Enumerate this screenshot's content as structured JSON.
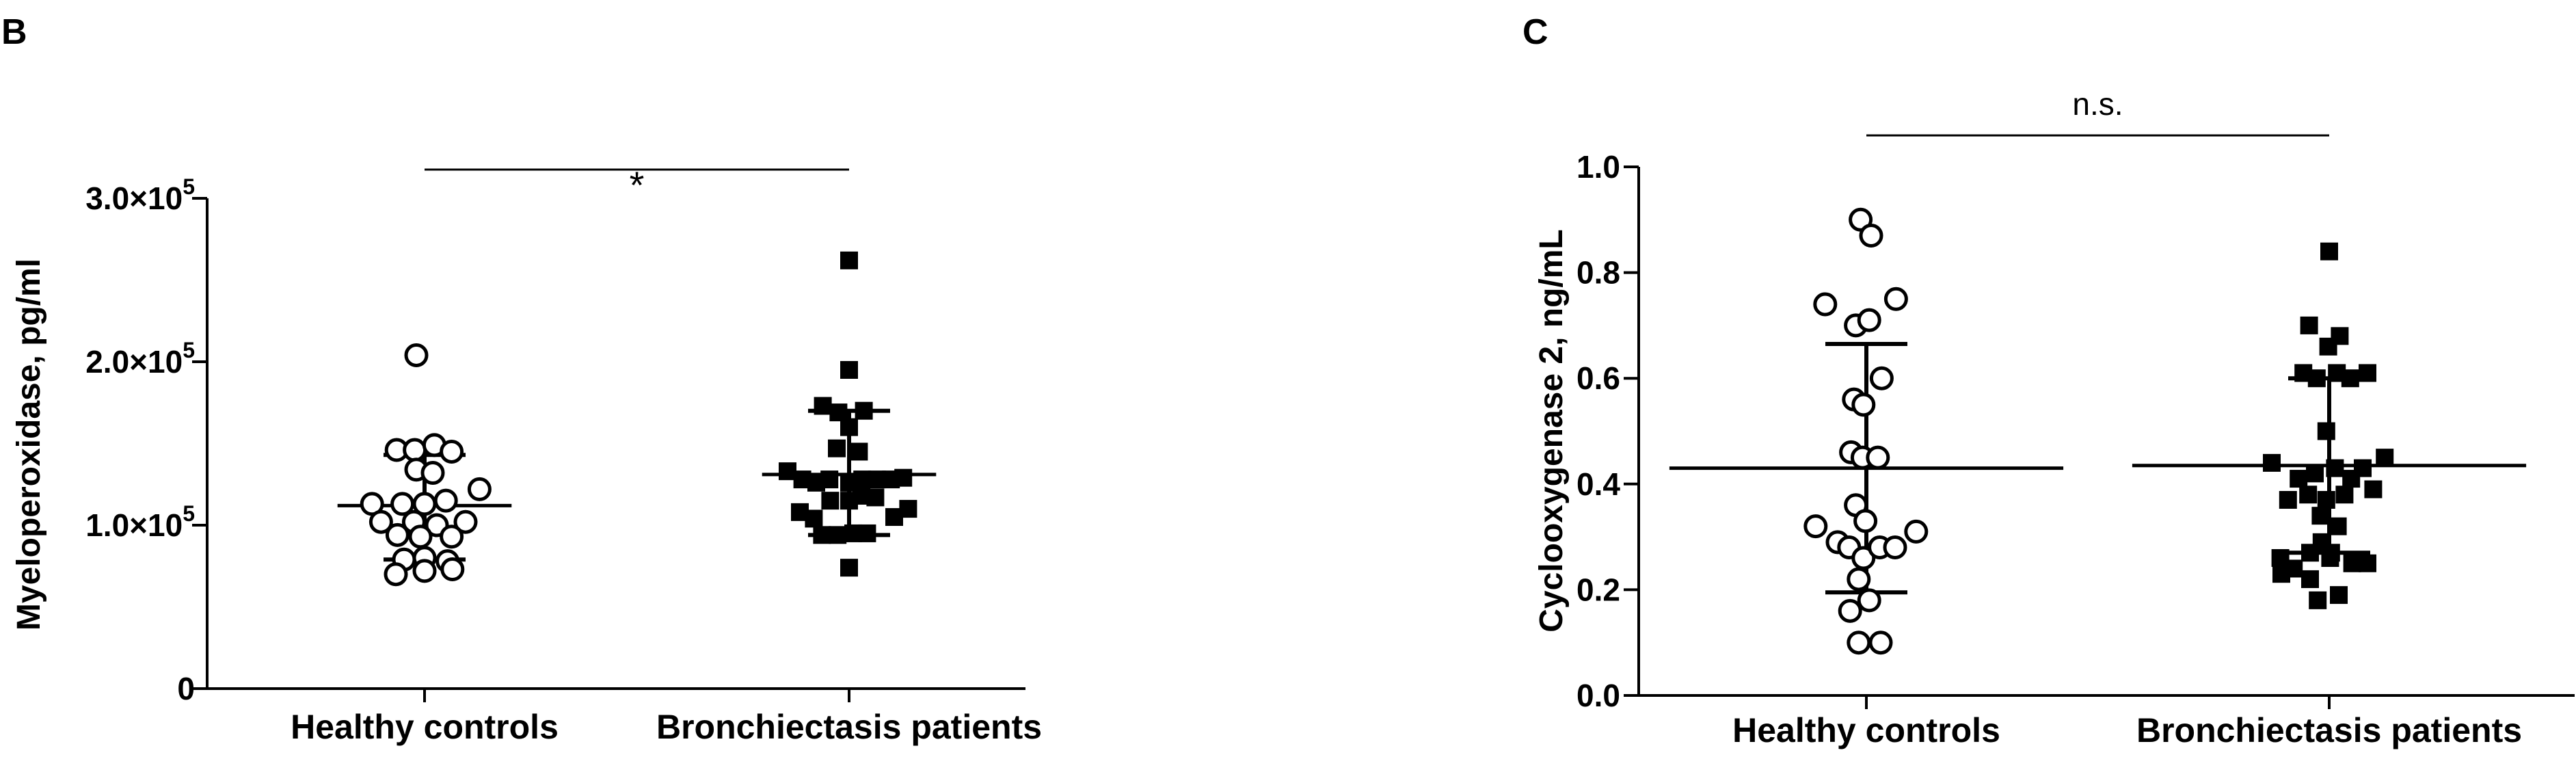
{
  "panels": {
    "b": {
      "letter": "B"
    },
    "c": {
      "letter": "C"
    }
  },
  "colors": {
    "ink": "#000000",
    "background": "#ffffff"
  },
  "chart_data": [
    {
      "id": "b",
      "type": "scatter",
      "ylabel": "Myeloperoxidase, pg/ml",
      "ylim": [
        0,
        300000
      ],
      "yticks": [
        {
          "value": 0,
          "mant": "0",
          "exp": ""
        },
        {
          "value": 100000,
          "mant": "1.0×10",
          "exp": "5"
        },
        {
          "value": 200000,
          "mant": "2.0×10",
          "exp": "5"
        },
        {
          "value": 300000,
          "mant": "3.0×10",
          "exp": "5"
        }
      ],
      "categories": [
        "Healthy controls",
        "Bronchiectasis patients"
      ],
      "significance": "*",
      "series": [
        {
          "name": "Healthy controls",
          "marker": "open-circle",
          "center": 112000,
          "lower": 79000,
          "upper": 143000,
          "points": [
            [
              -1.0,
              204000
            ],
            [
              -3.4,
              146000
            ],
            [
              -1.2,
              146000
            ],
            [
              1.2,
              149000
            ],
            [
              3.3,
              145000
            ],
            [
              -1.0,
              134000
            ],
            [
              1.0,
              132000
            ],
            [
              6.7,
              122000
            ],
            [
              -6.4,
              113000
            ],
            [
              -2.7,
              113000
            ],
            [
              0.0,
              113000
            ],
            [
              2.6,
              115000
            ],
            [
              -5.3,
              102000
            ],
            [
              -1.3,
              102000
            ],
            [
              1.5,
              100000
            ],
            [
              5.0,
              102000
            ],
            [
              -3.3,
              94000
            ],
            [
              -0.5,
              93000
            ],
            [
              3.3,
              93000
            ],
            [
              -2.5,
              79000
            ],
            [
              0.0,
              80000
            ],
            [
              2.8,
              78000
            ],
            [
              -3.5,
              70000
            ],
            [
              0.0,
              72000
            ],
            [
              3.4,
              73000
            ]
          ]
        },
        {
          "name": "Bronchiectasis patients",
          "marker": "filled-square",
          "center": 131000,
          "lower": 94000,
          "upper": 170000,
          "points": [
            [
              0.0,
              262000
            ],
            [
              0.0,
              195000
            ],
            [
              -3.2,
              173000
            ],
            [
              -1.3,
              169000
            ],
            [
              1.8,
              170000
            ],
            [
              0.0,
              160000
            ],
            [
              -1.5,
              147000
            ],
            [
              1.2,
              145000
            ],
            [
              -7.5,
              133000
            ],
            [
              -5.7,
              128000
            ],
            [
              -4.0,
              126000
            ],
            [
              -2.4,
              128000
            ],
            [
              0.0,
              126000
            ],
            [
              1.6,
              128000
            ],
            [
              3.4,
              128000
            ],
            [
              5.1,
              128000
            ],
            [
              6.6,
              129000
            ],
            [
              -2.3,
              115000
            ],
            [
              0.0,
              115000
            ],
            [
              1.5,
              118000
            ],
            [
              3.2,
              117000
            ],
            [
              -6.0,
              108000
            ],
            [
              -4.3,
              104000
            ],
            [
              5.5,
              105000
            ],
            [
              7.2,
              110000
            ],
            [
              -3.3,
              94000
            ],
            [
              -1.4,
              94000
            ],
            [
              0.5,
              95000
            ],
            [
              2.2,
              95000
            ],
            [
              0.0,
              74000
            ]
          ]
        }
      ]
    },
    {
      "id": "c",
      "type": "scatter",
      "ylabel": "Cyclooxygenase 2, ng/mL",
      "ylim": [
        0,
        1.0
      ],
      "yticks": [
        {
          "value": 0.0,
          "mant": "0.0",
          "exp": ""
        },
        {
          "value": 0.2,
          "mant": "0.2",
          "exp": ""
        },
        {
          "value": 0.4,
          "mant": "0.4",
          "exp": ""
        },
        {
          "value": 0.6,
          "mant": "0.6",
          "exp": ""
        },
        {
          "value": 0.8,
          "mant": "0.8",
          "exp": ""
        },
        {
          "value": 1.0,
          "mant": "1.0",
          "exp": ""
        }
      ],
      "categories": [
        "Healthy controls",
        "Bronchiectasis patients"
      ],
      "significance": "n.s.",
      "series": [
        {
          "name": "Healthy controls",
          "marker": "open-circle",
          "center": 0.43,
          "lower": 0.195,
          "upper": 0.665,
          "points": [
            [
              -0.6,
              0.9
            ],
            [
              0.5,
              0.87
            ],
            [
              -4.3,
              0.74
            ],
            [
              3.1,
              0.75
            ],
            [
              -1.1,
              0.7
            ],
            [
              0.3,
              0.71
            ],
            [
              1.6,
              0.6
            ],
            [
              -1.3,
              0.56
            ],
            [
              -0.3,
              0.55
            ],
            [
              -1.6,
              0.46
            ],
            [
              -0.4,
              0.45
            ],
            [
              1.2,
              0.45
            ],
            [
              -1.1,
              0.36
            ],
            [
              -0.1,
              0.33
            ],
            [
              -5.3,
              0.32
            ],
            [
              5.2,
              0.31
            ],
            [
              -3.0,
              0.29
            ],
            [
              -1.8,
              0.28
            ],
            [
              -0.3,
              0.26
            ],
            [
              1.4,
              0.28
            ],
            [
              3.0,
              0.28
            ],
            [
              -0.8,
              0.22
            ],
            [
              -1.7,
              0.16
            ],
            [
              0.3,
              0.18
            ],
            [
              -0.8,
              0.1
            ],
            [
              1.5,
              0.1
            ]
          ]
        },
        {
          "name": "Bronchiectasis patients",
          "marker": "filled-square",
          "center": 0.435,
          "lower": 0.27,
          "upper": 0.6,
          "points": [
            [
              0.0,
              0.84
            ],
            [
              -2.1,
              0.7
            ],
            [
              1.1,
              0.68
            ],
            [
              -0.1,
              0.66
            ],
            [
              -2.7,
              0.61
            ],
            [
              -1.3,
              0.6
            ],
            [
              0.8,
              0.61
            ],
            [
              2.2,
              0.6
            ],
            [
              4.0,
              0.61
            ],
            [
              -0.3,
              0.5
            ],
            [
              -6.0,
              0.44
            ],
            [
              3.5,
              0.43
            ],
            [
              5.8,
              0.45
            ],
            [
              -3.2,
              0.41
            ],
            [
              -1.5,
              0.42
            ],
            [
              0.6,
              0.43
            ],
            [
              2.3,
              0.41
            ],
            [
              -4.3,
              0.37
            ],
            [
              -2.2,
              0.38
            ],
            [
              -0.3,
              0.37
            ],
            [
              1.6,
              0.38
            ],
            [
              4.6,
              0.39
            ],
            [
              -0.9,
              0.34
            ],
            [
              0.9,
              0.32
            ],
            [
              -0.8,
              0.29
            ],
            [
              -5.1,
              0.26
            ],
            [
              -3.7,
              0.24
            ],
            [
              -2.0,
              0.27
            ],
            [
              0.2,
              0.27
            ],
            [
              2.4,
              0.25
            ],
            [
              4.0,
              0.25
            ],
            [
              -5.0,
              0.23
            ],
            [
              -2.0,
              0.22
            ],
            [
              0.1,
              0.26
            ],
            [
              -1.2,
              0.18
            ],
            [
              1.0,
              0.19
            ]
          ]
        }
      ]
    }
  ]
}
